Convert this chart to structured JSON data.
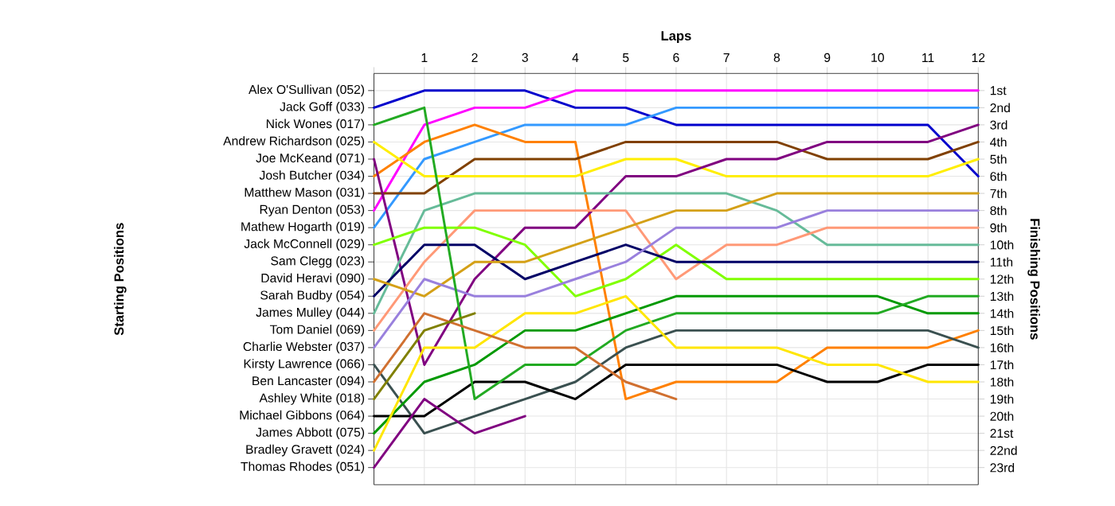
{
  "chart_data": {
    "type": "line",
    "xlabel": "Laps",
    "ylabel": "Finishing Positions",
    "x": [
      0,
      1,
      2,
      3,
      4,
      5,
      6,
      7,
      8,
      9,
      10,
      11,
      12
    ],
    "xlim": [
      0,
      12
    ],
    "xticks": [
      {
        "value": 0,
        "label": null
      },
      1,
      2,
      3,
      4,
      5,
      6,
      7,
      8,
      9,
      10,
      11,
      12
    ],
    "ylim": [
      24,
      0
    ],
    "yticks": [
      {
        "value": 1,
        "label": "1st"
      },
      {
        "value": 2,
        "label": "2nd"
      },
      {
        "value": 3,
        "label": "3rd"
      },
      {
        "value": 4,
        "label": "4th"
      },
      {
        "value": 5,
        "label": "5th"
      },
      {
        "value": 6,
        "label": "6th"
      },
      {
        "value": 7,
        "label": "7th"
      },
      {
        "value": 8,
        "label": "8th"
      },
      {
        "value": 9,
        "label": "9th"
      },
      {
        "value": 10,
        "label": "10th"
      },
      {
        "value": 11,
        "label": "11th"
      },
      {
        "value": 12,
        "label": "12th"
      },
      {
        "value": 13,
        "label": "13th"
      },
      {
        "value": 14,
        "label": "14th"
      },
      {
        "value": 15,
        "label": "15th"
      },
      {
        "value": 16,
        "label": "16th"
      },
      {
        "value": 17,
        "label": "17th"
      },
      {
        "value": 18,
        "label": "18th"
      },
      {
        "value": 19,
        "label": "19th"
      },
      {
        "value": 20,
        "label": "20th"
      },
      {
        "value": 21,
        "label": "21st"
      },
      {
        "value": 22,
        "label": "22nd"
      },
      {
        "value": 23,
        "label": "23rd"
      }
    ],
    "grid": true,
    "annotations": [
      "Alex O'Sullivan (052)",
      "Jack Goff (033)",
      "Nick Wones (017)",
      "Andrew Richardson (025)",
      "Joe McKeand (071)",
      "Josh Butcher (034)",
      "Matthew Mason (031)",
      "Ryan Denton (053)",
      "Mathew Hogarth (019)",
      "Jack McConnell (029)",
      "Sam Clegg (023)",
      "David Heravi (090)",
      "Sarah Budby (054)",
      "James Mulley (044)",
      "Tom Daniel (069)",
      "Charlie Webster (037)",
      "Kirsty Lawrence (066)",
      "Ben Lancaster (094)",
      "Ashley White (018)",
      "Michael Gibbons (064)",
      "James Abbott (075)",
      "Bradley Gravett (024)",
      "Thomas Rhodes (051)",
      "Starting Positions"
    ],
    "series": [
      {
        "color": "#0000cc",
        "values": [
          2,
          1,
          1,
          1,
          2,
          2,
          3,
          3,
          3,
          3,
          3,
          3,
          6
        ]
      },
      {
        "color": "#ff00ff",
        "values": [
          8,
          3,
          2,
          2,
          1,
          1,
          1,
          1,
          1,
          1,
          1,
          1,
          1
        ]
      },
      {
        "color": "#3399ff",
        "values": [
          9,
          5,
          4,
          3,
          3,
          3,
          2,
          2,
          2,
          2,
          2,
          2,
          2
        ]
      },
      {
        "color": "#ff8000",
        "values": [
          6,
          4,
          3,
          4,
          4,
          19,
          18,
          18,
          18,
          16,
          16,
          16,
          15
        ]
      },
      {
        "color": "#804000",
        "values": [
          7,
          7,
          5,
          5,
          5,
          4,
          4,
          4,
          4,
          5,
          5,
          5,
          4
        ]
      },
      {
        "color": "#ffee00",
        "values": [
          4,
          6,
          6,
          6,
          6,
          5,
          5,
          6,
          6,
          6,
          6,
          6,
          5
        ]
      },
      {
        "color": "#800080",
        "values": [
          5,
          17,
          12,
          9,
          9,
          6,
          6,
          5,
          5,
          4,
          4,
          4,
          3
        ]
      },
      {
        "color": "#66bb99",
        "values": [
          14,
          8,
          7,
          7,
          7,
          7,
          7,
          7,
          8,
          10,
          10,
          10,
          10
        ]
      },
      {
        "color": "#ff9977",
        "values": [
          15,
          11,
          8,
          8,
          8,
          8,
          12,
          10,
          10,
          9,
          9,
          9,
          9
        ]
      },
      {
        "color": "#80ff00",
        "values": [
          10,
          9,
          9,
          10,
          13,
          12,
          10,
          12,
          12,
          12,
          12,
          12,
          12
        ]
      },
      {
        "color": "#000066",
        "values": [
          13,
          10,
          10,
          12,
          11,
          10,
          11,
          11,
          11,
          11,
          11,
          11,
          11
        ]
      },
      {
        "color": "#d4a017",
        "values": [
          12,
          13,
          11,
          11,
          10,
          9,
          8,
          8,
          7,
          7,
          7,
          7,
          7
        ]
      },
      {
        "color": "#9980dd",
        "values": [
          16,
          12,
          13,
          13,
          12,
          11,
          9,
          9,
          9,
          8,
          8,
          8,
          8
        ]
      },
      {
        "color": "#3a5050",
        "values": [
          17,
          21,
          20,
          19,
          18,
          16,
          15,
          15,
          15,
          15,
          15,
          15,
          16
        ]
      },
      {
        "color": "#000000",
        "values": [
          20,
          20,
          18,
          18,
          19,
          17,
          17,
          17,
          17,
          18,
          18,
          17,
          17
        ]
      },
      {
        "color": "#009900",
        "values": [
          21,
          18,
          17,
          15,
          15,
          14,
          13,
          13,
          13,
          13,
          13,
          14,
          14
        ]
      },
      {
        "color": "#22aa22",
        "values": [
          3,
          2,
          19,
          17,
          17,
          15,
          14,
          14,
          14,
          14,
          14,
          13,
          13
        ]
      },
      {
        "color": "#ffe600",
        "values": [
          22,
          16,
          16,
          14,
          14,
          13,
          16,
          16,
          16,
          17,
          17,
          18,
          18
        ]
      },
      {
        "color": "#d07030",
        "values": [
          18,
          14,
          15,
          16,
          16,
          18,
          19,
          null,
          null,
          null,
          null,
          null,
          null
        ]
      },
      {
        "color": "#808000",
        "values": [
          19,
          15,
          14,
          null,
          null,
          null,
          null,
          null,
          null,
          null,
          null,
          null,
          null
        ]
      },
      {
        "color": "#800080",
        "values": [
          23,
          19,
          21,
          20,
          null,
          null,
          null,
          null,
          null,
          null,
          null,
          null,
          null
        ]
      }
    ]
  }
}
